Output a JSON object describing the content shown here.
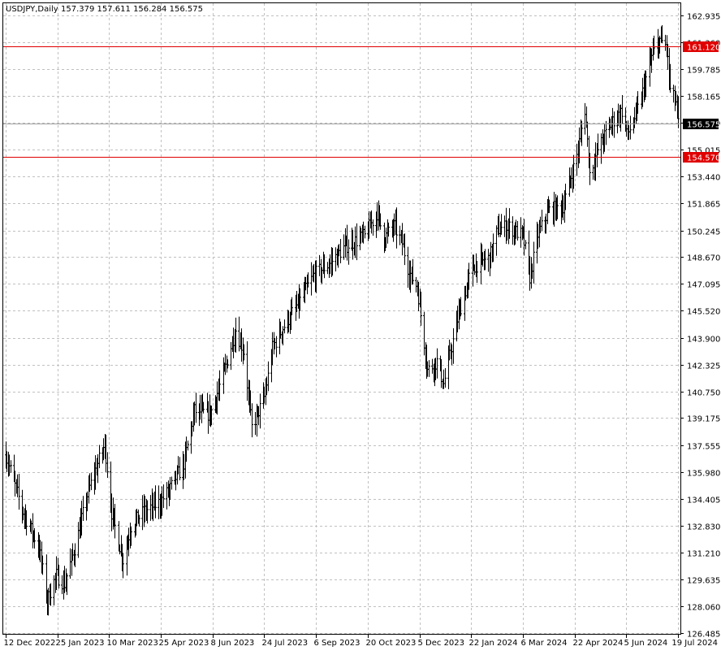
{
  "header": {
    "symbol": "USDJPY,Daily",
    "ohlc": "157.379 157.611 156.284 156.575"
  },
  "colors": {
    "background": "#ffffff",
    "grid": "#c0c0c0",
    "bars": "#000000",
    "level_line": "#e00000",
    "level_label_bg": "#e00000",
    "current_price_line": "#a0a0a0",
    "current_price_label_bg": "#000000"
  },
  "chart_data": {
    "type": "ohlc",
    "x_range": [
      "2022-12-12",
      "2024-07-19"
    ],
    "ylim": [
      126.485,
      162.935
    ],
    "grid": true,
    "y_ticks": [
      "162.935",
      "161.360",
      "159.785",
      "158.165",
      "156.590",
      "155.015",
      "153.440",
      "151.865",
      "150.245",
      "148.670",
      "147.095",
      "145.520",
      "143.900",
      "142.325",
      "140.750",
      "139.175",
      "137.555",
      "135.980",
      "134.405",
      "132.830",
      "131.210",
      "129.635",
      "128.060",
      "126.485"
    ],
    "x_ticks": [
      "12 Dec 2022",
      "25 Jan 2023",
      "10 Mar 2023",
      "25 Apr 2023",
      "8 Jun 2023",
      "24 Jul 2023",
      "6 Sep 2023",
      "20 Oct 2023",
      "5 Dec 2023",
      "22 Jan 2024",
      "6 Mar 2024",
      "22 Apr 2024",
      "5 Jun 2024",
      "19 Jul 2024"
    ],
    "series": [
      {
        "values": [
          [
            "2022-12-12",
            137.0
          ],
          [
            "2022-12-26",
            133.8
          ],
          [
            "2023-01-10",
            131.5
          ],
          [
            "2023-01-17",
            128.4
          ],
          [
            "2023-01-25",
            129.9
          ],
          [
            "2023-02-01",
            129.4
          ],
          [
            "2023-02-10",
            131.5
          ],
          [
            "2023-02-22",
            134.9
          ],
          [
            "2023-03-03",
            136.7
          ],
          [
            "2023-03-08",
            137.6
          ],
          [
            "2023-03-14",
            133.6
          ],
          [
            "2023-03-24",
            130.8
          ],
          [
            "2023-03-31",
            132.8
          ],
          [
            "2023-04-12",
            133.7
          ],
          [
            "2023-04-25",
            134.2
          ],
          [
            "2023-05-03",
            134.9
          ],
          [
            "2023-05-16",
            136.5
          ],
          [
            "2023-05-25",
            139.6
          ],
          [
            "2023-06-08",
            139.4
          ],
          [
            "2023-06-20",
            141.9
          ],
          [
            "2023-06-30",
            144.4
          ],
          [
            "2023-07-07",
            143.1
          ],
          [
            "2023-07-14",
            138.6
          ],
          [
            "2023-07-25",
            140.4
          ],
          [
            "2023-08-01",
            143.3
          ],
          [
            "2023-08-10",
            144.5
          ],
          [
            "2023-08-25",
            146.1
          ],
          [
            "2023-09-06",
            147.6
          ],
          [
            "2023-09-20",
            148.3
          ],
          [
            "2023-10-03",
            149.3
          ],
          [
            "2023-10-20",
            149.9
          ],
          [
            "2023-10-31",
            151.3
          ],
          [
            "2023-11-06",
            149.8
          ],
          [
            "2023-11-15",
            150.5
          ],
          [
            "2023-11-22",
            149.5
          ],
          [
            "2023-11-28",
            147.8
          ],
          [
            "2023-12-05",
            146.9
          ],
          [
            "2023-12-14",
            142.0
          ],
          [
            "2023-12-22",
            142.5
          ],
          [
            "2023-12-28",
            141.2
          ],
          [
            "2024-01-10",
            145.3
          ],
          [
            "2024-01-22",
            148.1
          ],
          [
            "2024-02-06",
            148.6
          ],
          [
            "2024-02-13",
            150.3
          ],
          [
            "2024-02-22",
            150.5
          ],
          [
            "2024-03-06",
            149.9
          ],
          [
            "2024-03-12",
            147.5
          ],
          [
            "2024-03-19",
            150.0
          ],
          [
            "2024-03-28",
            151.4
          ],
          [
            "2024-04-10",
            151.7
          ],
          [
            "2024-04-22",
            154.7
          ],
          [
            "2024-04-29",
            157.4
          ],
          [
            "2024-05-03",
            153.6
          ],
          [
            "2024-05-10",
            155.0
          ],
          [
            "2024-05-22",
            156.6
          ],
          [
            "2024-05-31",
            157.3
          ],
          [
            "2024-06-05",
            155.9
          ],
          [
            "2024-06-14",
            157.4
          ],
          [
            "2024-06-26",
            160.5
          ],
          [
            "2024-07-03",
            161.5
          ],
          [
            "2024-07-09",
            161.1
          ],
          [
            "2024-07-12",
            158.5
          ],
          [
            "2024-07-17",
            157.8
          ],
          [
            "2024-07-19",
            156.575
          ]
        ]
      }
    ],
    "horizontal_levels": [
      {
        "price": 161.12,
        "label": "161.120"
      },
      {
        "price": 154.57,
        "label": "154.570"
      }
    ],
    "current_price": {
      "price": 156.575,
      "label": "156.575"
    }
  }
}
